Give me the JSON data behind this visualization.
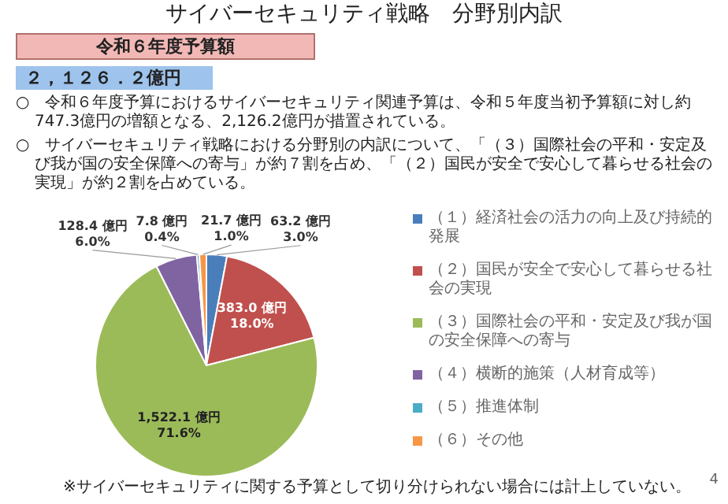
{
  "chart_data": {
    "type": "pie",
    "title": "サイバーセキュリティ戦略　分野別内訳",
    "subtitle": "令和６年度予算額",
    "annotations": [
      "２，１２６．２億円",
      "○　令和６年度予算におけるサイバーセキュリティ関連予算は、令和５年度当初予算額に対し約747.3億円の増額となる、2,126.2億円が措置されている。",
      "○　サイバーセキュリティ戦略における分野別の内訳について、「（３）国際社会の平和・安定及び我が国の安全保障への寄与」が約７割を占め、「（２）国民が安全で安心して暮らせる社会の実現」が約２割を占めている。",
      "※サイバーセキュリティに関する予算として切り分けられない場合には計上していない。",
      "4"
    ],
    "categories": [
      "（１）経済社会の活力の向上及び持続的発展",
      "（２）国民が安全で安心して暮らせる社会の実現",
      "（３）国際社会の平和・安定及び我が国の安全保障への寄与",
      "（４）横断的施策（人材育成等）",
      "（５）推進体制",
      "（６）その他"
    ],
    "values": [
      63.2,
      383.0,
      1522.1,
      128.4,
      7.8,
      21.7
    ],
    "colors": [
      "#4a7ebb",
      "#c0504d",
      "#9bbb59",
      "#8064a2",
      "#4bacc6",
      "#f79646"
    ],
    "value_labels": [
      "63.2 億円\n3.0%",
      "383.0 億円\n18.0%",
      "1,522.1 億円\n71.6%",
      "128.4 億円\n6.0%",
      "7.8 億円\n0.4%",
      "21.7 億円\n1.0%"
    ],
    "legend": "right"
  }
}
